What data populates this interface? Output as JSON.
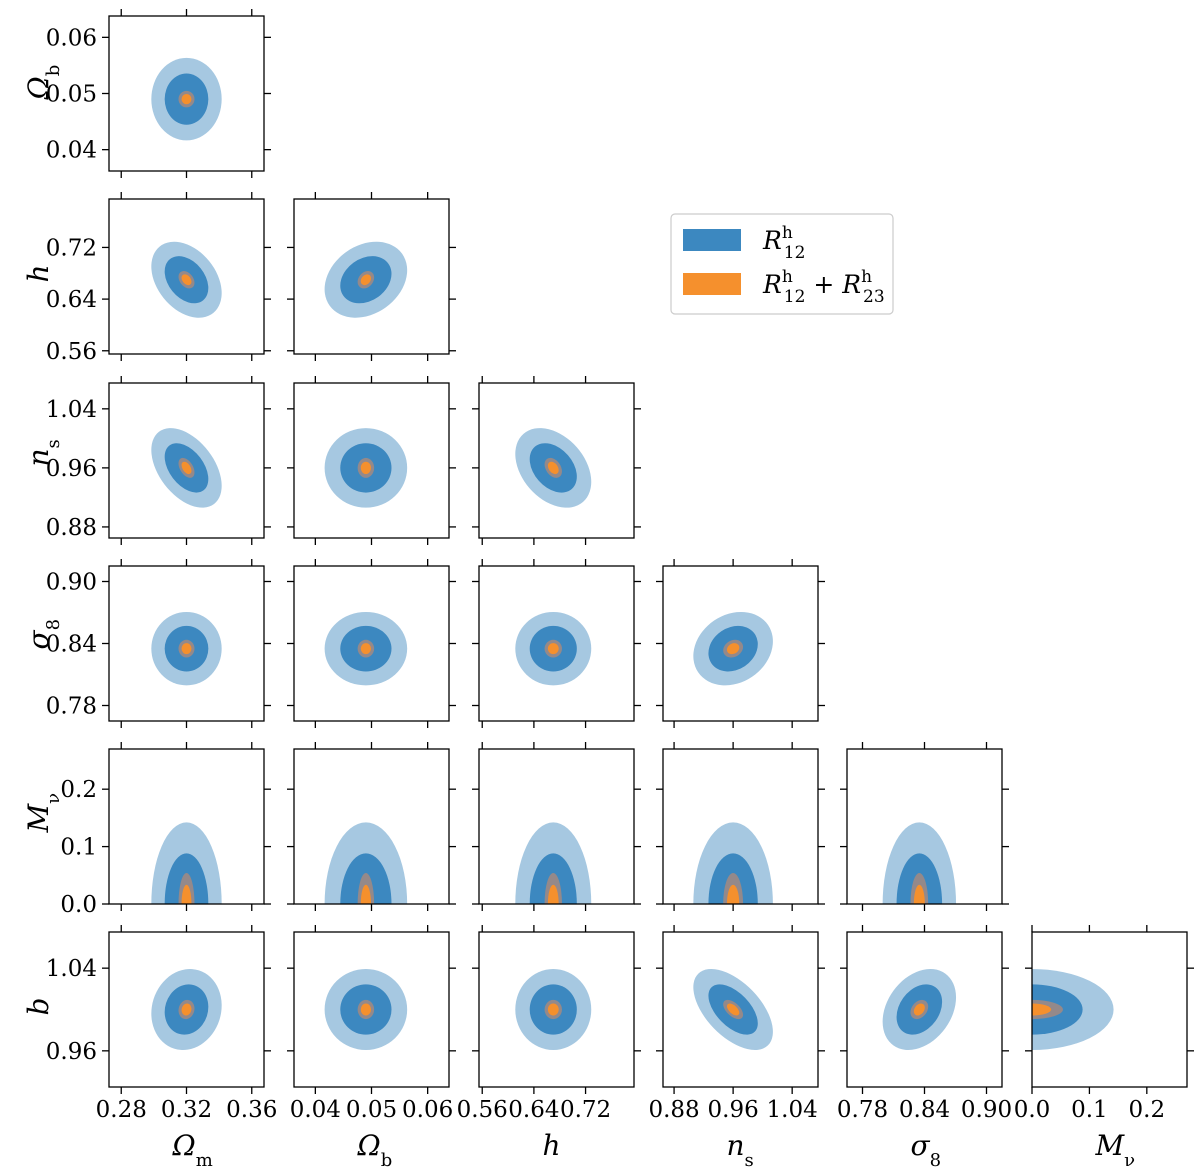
{
  "chart_data": {
    "type": "corner",
    "description_free": true,
    "params": [
      {
        "name": "Omega_m",
        "label_main": "Ω",
        "label_sub": "m",
        "ticks": [
          0.28,
          0.32,
          0.36
        ],
        "tick_labels": [
          "0.28",
          "0.32",
          "0.36"
        ],
        "range": [
          0.2725,
          0.3675
        ],
        "center": 0.32,
        "sigma_blue": 0.0088,
        "sigma_orange": 0.002
      },
      {
        "name": "Omega_b",
        "label_main": "Ω",
        "label_sub": "b",
        "ticks": [
          0.04,
          0.05,
          0.06
        ],
        "tick_labels": [
          "0.04",
          "0.05",
          "0.06"
        ],
        "range": [
          0.0362,
          0.0638
        ],
        "center": 0.049,
        "sigma_blue": 0.003,
        "sigma_orange": 0.0006
      },
      {
        "name": "h",
        "label_main": "h",
        "label_sub": "",
        "ticks": [
          0.56,
          0.64,
          0.72
        ],
        "tick_labels": [
          "0.56",
          "0.64",
          "0.72"
        ],
        "range": [
          0.555,
          0.795
        ],
        "center": 0.67,
        "sigma_blue": 0.024,
        "sigma_orange": 0.0055
      },
      {
        "name": "n_s",
        "label_main": "n",
        "label_sub": "s",
        "ticks": [
          0.88,
          0.96,
          1.04
        ],
        "tick_labels": [
          "0.88",
          "0.96",
          "1.04"
        ],
        "range": [
          0.865,
          1.075
        ],
        "center": 0.96,
        "sigma_blue": 0.022,
        "sigma_orange": 0.0055
      },
      {
        "name": "sigma_8",
        "label_main": "σ",
        "label_sub": "8",
        "ticks": [
          0.78,
          0.84,
          0.9
        ],
        "tick_labels": [
          "0.78",
          "0.84",
          "0.90"
        ],
        "range": [
          0.765,
          0.915
        ],
        "center": 0.835,
        "sigma_blue": 0.0145,
        "sigma_orange": 0.0035
      },
      {
        "name": "M_nu",
        "label_main": "M",
        "label_sub": "ν",
        "ticks": [
          0.0,
          0.1,
          0.2
        ],
        "tick_labels": [
          "0.0",
          "0.1",
          "0.2"
        ],
        "range": [
          0.0,
          0.27
        ],
        "center": 0.0,
        "sigma_blue": 0.058,
        "sigma_orange": 0.022
      },
      {
        "name": "b",
        "label_main": "b",
        "label_sub": "",
        "ticks": [
          0.96,
          1.04
        ],
        "tick_labels": [
          "0.96",
          "1.04"
        ],
        "range": [
          0.925,
          1.075
        ],
        "center": 1.0,
        "sigma_blue": 0.016,
        "sigma_orange": 0.0038
      }
    ],
    "panels": [
      {
        "x": "Omega_m",
        "y": "Omega_b",
        "rho": 0.0
      },
      {
        "x": "Omega_m",
        "y": "h",
        "rho": -0.35
      },
      {
        "x": "Omega_b",
        "y": "h",
        "rho": 0.25
      },
      {
        "x": "Omega_m",
        "y": "n_s",
        "rho": -0.45
      },
      {
        "x": "Omega_b",
        "y": "n_s",
        "rho": 0.0
      },
      {
        "x": "h",
        "y": "n_s",
        "rho": -0.35
      },
      {
        "x": "Omega_m",
        "y": "sigma_8",
        "rho": 0.0
      },
      {
        "x": "Omega_b",
        "y": "sigma_8",
        "rho": 0.0
      },
      {
        "x": "h",
        "y": "sigma_8",
        "rho": 0.0
      },
      {
        "x": "n_s",
        "y": "sigma_8",
        "rho": 0.2
      },
      {
        "x": "Omega_m",
        "y": "M_nu",
        "rho": 0.0
      },
      {
        "x": "Omega_b",
        "y": "M_nu",
        "rho": 0.0
      },
      {
        "x": "h",
        "y": "M_nu",
        "rho": 0.0
      },
      {
        "x": "n_s",
        "y": "M_nu",
        "rho": 0.0
      },
      {
        "x": "sigma_8",
        "y": "M_nu",
        "rho": 0.0
      },
      {
        "x": "Omega_m",
        "y": "b",
        "rho": 0.1
      },
      {
        "x": "Omega_b",
        "y": "b",
        "rho": 0.0
      },
      {
        "x": "h",
        "y": "b",
        "rho": 0.0
      },
      {
        "x": "n_s",
        "y": "b",
        "rho": -0.55
      },
      {
        "x": "sigma_8",
        "y": "b",
        "rho": 0.3
      },
      {
        "x": "M_nu",
        "y": "b",
        "rho": 0.0
      }
    ],
    "series": [
      {
        "name": "R12h",
        "label_main": "R",
        "label_sup": "h",
        "label_sub": "12",
        "color_outer": "#a6c8e1",
        "color_inner": "#3c88c0"
      },
      {
        "name": "R12h+R23h",
        "label_main": "R",
        "label_sup": "h",
        "label_sub": "12",
        "label_plus": " + ",
        "label2_main": "R",
        "label2_sup": "h",
        "label2_sub": "23",
        "color_outer": "#94898a",
        "color_inner": "#f5902d"
      }
    ],
    "legend_position": "upper-right of the empty triangle"
  }
}
